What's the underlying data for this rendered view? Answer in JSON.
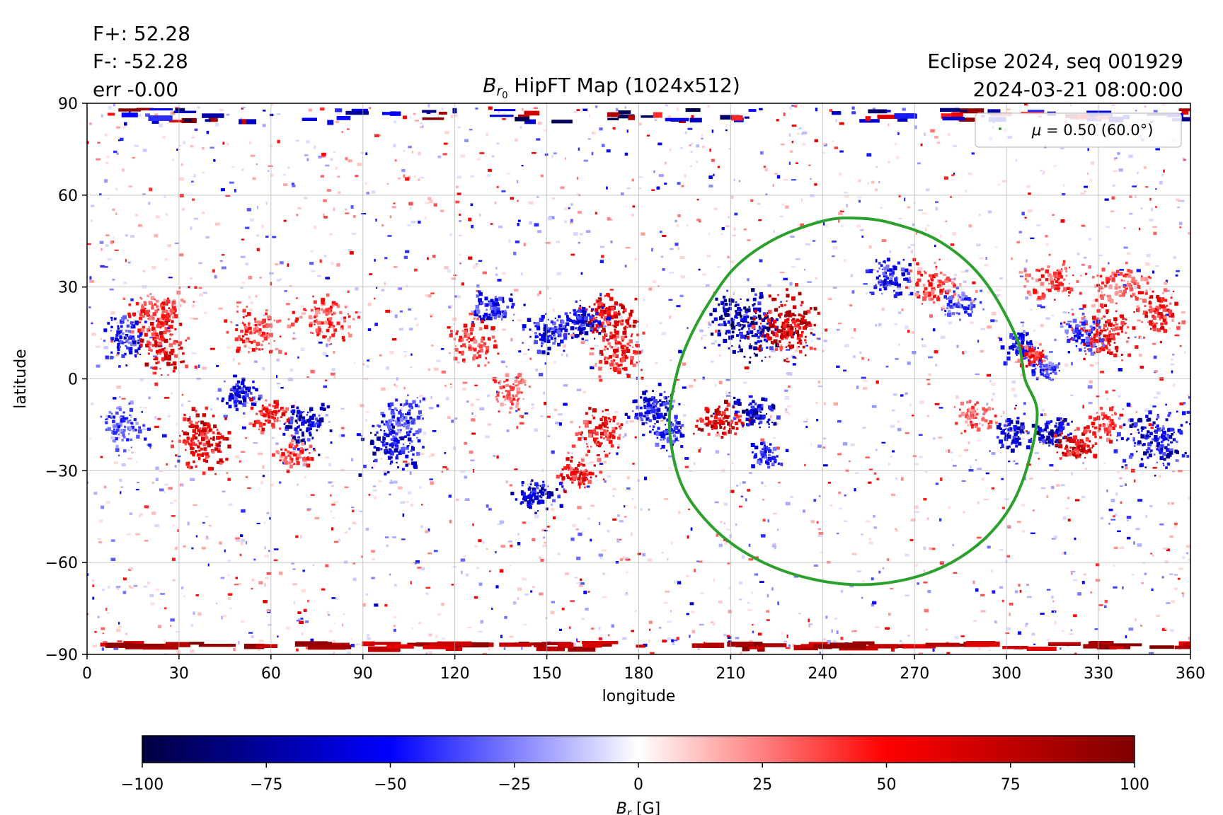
{
  "stats": {
    "f_plus": "F+: 52.28",
    "f_minus": "F-: -52.28",
    "err": "err -0.00"
  },
  "header_right": {
    "line1": "Eclipse 2024, seq 001929",
    "line2": "2024-03-21 08:00:00"
  },
  "chart_data": {
    "type": "heatmap",
    "title": {
      "symbol": "B",
      "sub": "r",
      "subsub": "0",
      "text": " HipFT Map (1024x512)"
    },
    "xlabel": "longitude",
    "ylabel": "latitude",
    "xlim": [
      0,
      360
    ],
    "ylim": [
      -90,
      90
    ],
    "xticks": [
      0,
      30,
      60,
      90,
      120,
      150,
      180,
      210,
      240,
      270,
      300,
      330,
      360
    ],
    "yticks": [
      90,
      60,
      30,
      0,
      -30,
      -60,
      -90
    ],
    "grid": true,
    "legend": {
      "placement": "top-right",
      "entries": [
        {
          "label_math": "μ",
          "label_text": " = 0.50 (60.0°)",
          "color": "#2ca02c"
        }
      ]
    },
    "overlay_contour": {
      "name": "μ = 0.50 (60.0°)",
      "color": "#2ca02c",
      "points": [
        [
          190,
          -15
        ],
        [
          192,
          0
        ],
        [
          196,
          12
        ],
        [
          203,
          25
        ],
        [
          212,
          37
        ],
        [
          225,
          46
        ],
        [
          240,
          51.5
        ],
        [
          250,
          52.5
        ],
        [
          262,
          51
        ],
        [
          278,
          45
        ],
        [
          292,
          33
        ],
        [
          303,
          14
        ],
        [
          306,
          0
        ],
        [
          310,
          -12
        ],
        [
          305,
          -34
        ],
        [
          296,
          -49
        ],
        [
          282,
          -60
        ],
        [
          265,
          -66
        ],
        [
          247,
          -67
        ],
        [
          228,
          -63
        ],
        [
          212,
          -55
        ],
        [
          200,
          -44
        ],
        [
          193,
          -32
        ]
      ]
    },
    "active_regions": [
      {
        "lon": 215,
        "lat": 18,
        "B": -100,
        "dlon": 9,
        "dlat": 8
      },
      {
        "lon": 229,
        "lat": 17,
        "B": 95,
        "dlon": 8,
        "dlat": 8
      },
      {
        "lon": 207,
        "lat": -14,
        "B": 95,
        "dlon": 6,
        "dlat": 4
      },
      {
        "lon": 218,
        "lat": -11,
        "B": -90,
        "dlon": 5,
        "dlat": 4
      },
      {
        "lon": 222,
        "lat": -25,
        "B": -70,
        "dlon": 4,
        "dlat": 3
      },
      {
        "lon": 171,
        "lat": 20,
        "B": 90,
        "dlon": 7,
        "dlat": 6
      },
      {
        "lon": 162,
        "lat": 19,
        "B": -80,
        "dlon": 5,
        "dlat": 5
      },
      {
        "lon": 174,
        "lat": 8,
        "B": 70,
        "dlon": 6,
        "dlat": 6
      },
      {
        "lon": 168,
        "lat": -18,
        "B": 70,
        "dlon": 6,
        "dlat": 6
      },
      {
        "lon": 185,
        "lat": -10,
        "B": -80,
        "dlon": 6,
        "dlat": 6
      },
      {
        "lon": 190,
        "lat": -18,
        "B": -60,
        "dlon": 4,
        "dlat": 4
      },
      {
        "lon": 160,
        "lat": -31,
        "B": 75,
        "dlon": 5,
        "dlat": 4
      },
      {
        "lon": 147,
        "lat": -38,
        "B": -85,
        "dlon": 6,
        "dlat": 4
      },
      {
        "lon": 150,
        "lat": 15,
        "B": -75,
        "dlon": 6,
        "dlat": 5
      },
      {
        "lon": 133,
        "lat": 23,
        "B": -70,
        "dlon": 6,
        "dlat": 4
      },
      {
        "lon": 126,
        "lat": 12,
        "B": 60,
        "dlon": 6,
        "dlat": 6
      },
      {
        "lon": 138,
        "lat": -5,
        "B": 50,
        "dlon": 5,
        "dlat": 5
      },
      {
        "lon": 13,
        "lat": 13,
        "B": -70,
        "dlon": 6,
        "dlat": 6
      },
      {
        "lon": 25,
        "lat": 12,
        "B": 80,
        "dlon": 6,
        "dlat": 8
      },
      {
        "lon": 22,
        "lat": 22,
        "B": 55,
        "dlon": 7,
        "dlat": 6
      },
      {
        "lon": 55,
        "lat": 16,
        "B": 55,
        "dlon": 8,
        "dlat": 6
      },
      {
        "lon": 78,
        "lat": 20,
        "B": 55,
        "dlon": 8,
        "dlat": 6
      },
      {
        "lon": 38,
        "lat": -20,
        "B": 85,
        "dlon": 7,
        "dlat": 8
      },
      {
        "lon": 50,
        "lat": -5,
        "B": -80,
        "dlon": 5,
        "dlat": 4
      },
      {
        "lon": 60,
        "lat": -12,
        "B": 70,
        "dlon": 5,
        "dlat": 4
      },
      {
        "lon": 72,
        "lat": -15,
        "B": -90,
        "dlon": 6,
        "dlat": 6
      },
      {
        "lon": 68,
        "lat": -25,
        "B": 55,
        "dlon": 5,
        "dlat": 4
      },
      {
        "lon": 100,
        "lat": -20,
        "B": -80,
        "dlon": 7,
        "dlat": 8
      },
      {
        "lon": 104,
        "lat": -12,
        "B": -55,
        "dlon": 5,
        "dlat": 5
      },
      {
        "lon": 305,
        "lat": 10,
        "B": -70,
        "dlon": 4,
        "dlat": 4
      },
      {
        "lon": 309,
        "lat": 7,
        "B": 65,
        "dlon": 4,
        "dlat": 3
      },
      {
        "lon": 313,
        "lat": 3,
        "B": -55,
        "dlon": 4,
        "dlat": 3
      },
      {
        "lon": 302,
        "lat": -18,
        "B": -85,
        "dlon": 4,
        "dlat": 4
      },
      {
        "lon": 315,
        "lat": -17,
        "B": -95,
        "dlon": 5,
        "dlat": 4
      },
      {
        "lon": 323,
        "lat": -22,
        "B": 90,
        "dlon": 6,
        "dlat": 4
      },
      {
        "lon": 332,
        "lat": -15,
        "B": 55,
        "dlon": 4,
        "dlat": 4
      },
      {
        "lon": 348,
        "lat": -20,
        "B": -85,
        "dlon": 9,
        "dlat": 7
      },
      {
        "lon": 332,
        "lat": 15,
        "B": 75,
        "dlon": 8,
        "dlat": 7
      },
      {
        "lon": 350,
        "lat": 22,
        "B": 70,
        "dlon": 6,
        "dlat": 6
      },
      {
        "lon": 325,
        "lat": 15,
        "B": -55,
        "dlon": 5,
        "dlat": 5
      },
      {
        "lon": 262,
        "lat": 33,
        "B": -70,
        "dlon": 6,
        "dlat": 5
      },
      {
        "lon": 276,
        "lat": 30,
        "B": 55,
        "dlon": 6,
        "dlat": 5
      },
      {
        "lon": 315,
        "lat": 32,
        "B": 55,
        "dlon": 8,
        "dlat": 5
      },
      {
        "lon": 338,
        "lat": 31,
        "B": 50,
        "dlon": 8,
        "dlat": 5
      },
      {
        "lon": 285,
        "lat": 24,
        "B": -50,
        "dlon": 5,
        "dlat": 4
      },
      {
        "lon": 12,
        "lat": -15,
        "B": -50,
        "dlon": 6,
        "dlat": 6
      },
      {
        "lon": 290,
        "lat": -12,
        "B": 45,
        "dlon": 5,
        "dlat": 4
      }
    ],
    "colorbar": {
      "label_symbol": "B",
      "label_sub": "r",
      "label_unit": " [G]",
      "range": [
        -100,
        100
      ],
      "ticks": [
        -100,
        -75,
        -50,
        -25,
        0,
        25,
        50,
        75,
        100
      ],
      "stops": [
        {
          "value": -100,
          "color": "#00003f"
        },
        {
          "value": -50,
          "color": "#0000ff"
        },
        {
          "value": 0,
          "color": "#ffffff"
        },
        {
          "value": 50,
          "color": "#ff0000"
        },
        {
          "value": 100,
          "color": "#7f0000"
        }
      ]
    }
  }
}
